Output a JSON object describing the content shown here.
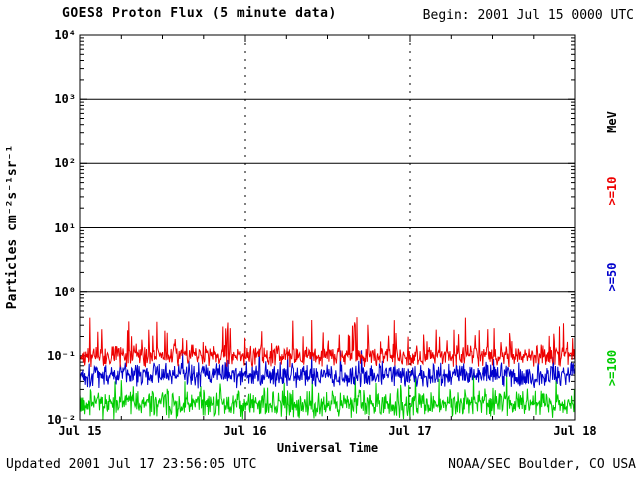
{
  "header": {
    "title": "GOES8 Proton Flux (5 minute data)",
    "begin_label": "Begin: 2001 Jul 15 0000 UTC"
  },
  "footer": {
    "updated": "Updated 2001 Jul 17 23:56:05 UTC",
    "organization": "NOAA/SEC Boulder, CO USA"
  },
  "chart_data": {
    "type": "line",
    "title": "GOES8 Proton Flux (5 minute data)",
    "xlabel": "Universal Time",
    "ylabel": "Particles cm⁻²s⁻¹sr⁻¹",
    "x_tick_labels": [
      "Jul 15",
      "Jul 16",
      "Jul 17",
      "Jul 18"
    ],
    "y_tick_labels": [
      "10⁴",
      "10³",
      "10²",
      "10¹",
      "10⁰",
      "10⁻¹",
      "10⁻²"
    ],
    "ylim_log10": [
      -2,
      4
    ],
    "x_span_days": 3,
    "sample_interval_minutes": 5,
    "points_per_series": 864,
    "right_axis_unit": "MeV",
    "grid": {
      "horizontal_lines_log10": [
        0,
        1,
        2,
        3
      ],
      "vertical_dashed_days": [
        1,
        2
      ]
    },
    "series": [
      {
        "name": ">=10",
        "color": "#ee0000",
        "typical_flux": 0.1,
        "observed_range": [
          0.05,
          0.55
        ],
        "noise": {
          "jitter": 0.2,
          "spike_prob": 0.12,
          "spike_amp": 0.5
        }
      },
      {
        "name": ">=50",
        "color": "#0000cc",
        "typical_flux": 0.05,
        "observed_range": [
          0.025,
          0.2
        ],
        "noise": {
          "jitter": 0.22,
          "spike_prob": 0.08,
          "spike_amp": 0.35
        }
      },
      {
        "name": ">=100",
        "color": "#00cc00",
        "typical_flux": 0.018,
        "observed_range": [
          0.01,
          0.07
        ],
        "noise": {
          "jitter": 0.26,
          "spike_prob": 0.06,
          "spike_amp": 0.35
        }
      }
    ]
  }
}
